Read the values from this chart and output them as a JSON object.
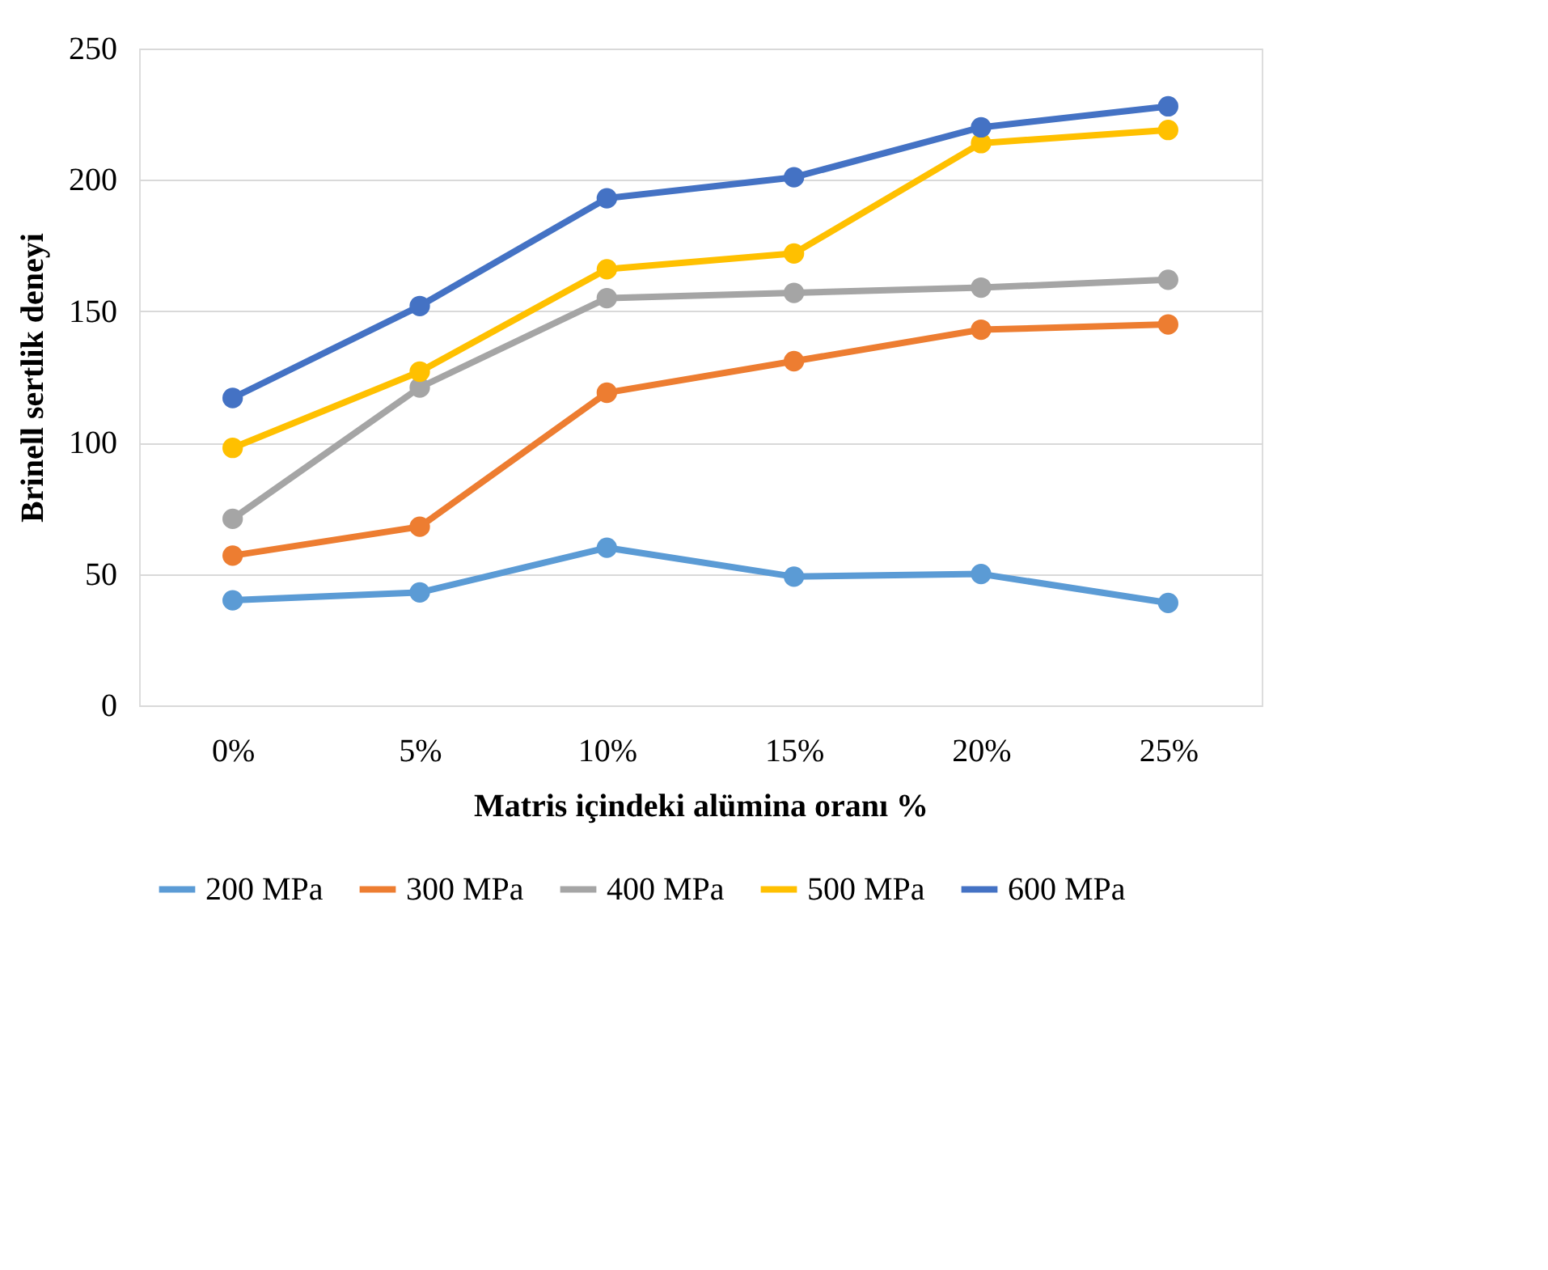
{
  "chart_data": {
    "type": "line",
    "xlabel": "Matris içindeki alümina oranı %",
    "ylabel": "Brinell sertlik deneyi",
    "categories": [
      "0%",
      "5%",
      "10%",
      "15%",
      "20%",
      "25%"
    ],
    "series": [
      {
        "name": "200 MPa",
        "color": "#5b9bd5",
        "values": [
          40,
          43,
          60,
          49,
          50,
          39
        ]
      },
      {
        "name": "300 MPa",
        "color": "#ed7d31",
        "values": [
          57,
          68,
          119,
          131,
          143,
          145
        ]
      },
      {
        "name": "400 MPa",
        "color": "#a5a5a5",
        "values": [
          71,
          121,
          155,
          157,
          159,
          162
        ]
      },
      {
        "name": "500 MPa",
        "color": "#ffc000",
        "values": [
          98,
          127,
          166,
          172,
          214,
          219
        ]
      },
      {
        "name": "600 MPa",
        "color": "#4472c4",
        "values": [
          117,
          152,
          193,
          201,
          220,
          228
        ]
      }
    ],
    "ylim": [
      0,
      250
    ],
    "yticks": [
      0,
      50,
      100,
      150,
      200,
      250
    ],
    "grid": "y",
    "legend": "bottom",
    "marker": "circle",
    "line_style": "solid"
  }
}
